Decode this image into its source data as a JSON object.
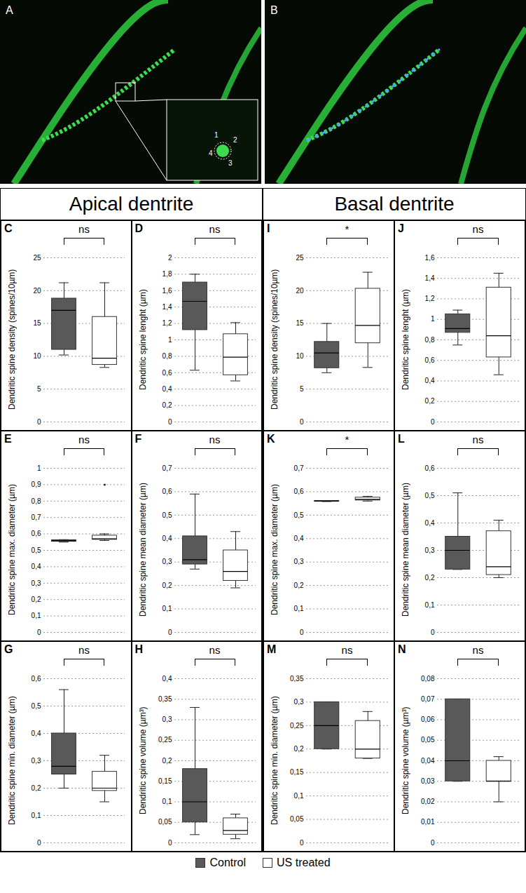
{
  "images": [
    {
      "letter": "A",
      "inset_labels": [
        "1",
        "2",
        "3",
        "4"
      ]
    },
    {
      "letter": "B"
    }
  ],
  "sections": [
    {
      "title": "Apical dentrite",
      "panels": [
        "C",
        "D",
        "E",
        "F",
        "G",
        "H"
      ]
    },
    {
      "title": "Basal dentrite",
      "panels": [
        "I",
        "J",
        "K",
        "L",
        "M",
        "N"
      ]
    }
  ],
  "chart_data": [
    {
      "type": "box",
      "letter": "C",
      "ylabel": "Dendritic spine density (spines/10µm)",
      "significance": "ns",
      "grid": true,
      "legend": "bottom",
      "ylim": [
        0,
        25
      ],
      "yticks": [
        0,
        5,
        10,
        15,
        20,
        25
      ],
      "series": [
        {
          "name": "Control",
          "color": "#595959",
          "min": 10.2,
          "q1": 11,
          "median": 17,
          "q3": 18.8,
          "max": 21.2,
          "outliers": []
        },
        {
          "name": "US treated",
          "color": "#ffffff",
          "min": 8.3,
          "q1": 8.7,
          "median": 9.7,
          "q3": 16,
          "max": 21.2,
          "outliers": []
        }
      ]
    },
    {
      "type": "box",
      "letter": "D",
      "ylabel": "Dendritic spine lenght (µm)",
      "significance": "ns",
      "grid": true,
      "legend": "bottom",
      "ylim": [
        0,
        2
      ],
      "yticks": [
        0,
        {
          "value": 0.2,
          "label": "0,2"
        },
        {
          "value": 0.4,
          "label": "0,4"
        },
        {
          "value": 0.6,
          "label": "0,6"
        },
        {
          "value": 0.8,
          "label": "0,8"
        },
        1,
        {
          "value": 1.2,
          "label": "1,2"
        },
        {
          "value": 1.4,
          "label": "1,4"
        },
        {
          "value": 1.6,
          "label": "1,6"
        },
        {
          "value": 1.8,
          "label": "1,8"
        },
        2
      ],
      "series": [
        {
          "name": "Control",
          "color": "#595959",
          "min": 0.63,
          "q1": 1.12,
          "median": 1.47,
          "q3": 1.7,
          "max": 1.8,
          "outliers": []
        },
        {
          "name": "US treated",
          "color": "#ffffff",
          "min": 0.5,
          "q1": 0.57,
          "median": 0.79,
          "q3": 1.07,
          "max": 1.21,
          "outliers": []
        }
      ]
    },
    {
      "type": "box",
      "letter": "E",
      "ylabel": "Dendritic spine max. diameter (µm)",
      "significance": "ns",
      "grid": true,
      "legend": "bottom",
      "ylim": [
        0,
        1
      ],
      "yticks": [
        0,
        {
          "value": 0.1,
          "label": "0,1"
        },
        {
          "value": 0.2,
          "label": "0,2"
        },
        {
          "value": 0.3,
          "label": "0,3"
        },
        {
          "value": 0.4,
          "label": "0,4"
        },
        {
          "value": 0.5,
          "label": "0,5"
        },
        {
          "value": 0.6,
          "label": "0,6"
        },
        {
          "value": 0.7,
          "label": "0,7"
        },
        {
          "value": 0.8,
          "label": "0,8"
        },
        {
          "value": 0.9,
          "label": "0,9"
        },
        1
      ],
      "series": [
        {
          "name": "Control",
          "color": "#595959",
          "min": 0.55,
          "q1": 0.553,
          "median": 0.558,
          "q3": 0.562,
          "max": 0.565,
          "outliers": []
        },
        {
          "name": "US treated",
          "color": "#ffffff",
          "min": 0.56,
          "q1": 0.565,
          "median": 0.57,
          "q3": 0.59,
          "max": 0.6,
          "outliers": [
            0.9
          ]
        }
      ]
    },
    {
      "type": "box",
      "letter": "F",
      "ylabel": "Dendritic spine mean diameter (µm)",
      "significance": "ns",
      "grid": true,
      "legend": "bottom",
      "ylim": [
        0,
        0.7
      ],
      "yticks": [
        0,
        {
          "value": 0.1,
          "label": "0,1"
        },
        {
          "value": 0.2,
          "label": "0,2"
        },
        {
          "value": 0.3,
          "label": "0,3"
        },
        {
          "value": 0.4,
          "label": "0,4"
        },
        {
          "value": 0.5,
          "label": "0,5"
        },
        {
          "value": 0.6,
          "label": "0,6"
        },
        {
          "value": 0.7,
          "label": "0,7"
        }
      ],
      "series": [
        {
          "name": "Control",
          "color": "#595959",
          "min": 0.27,
          "q1": 0.29,
          "median": 0.31,
          "q3": 0.41,
          "max": 0.59,
          "outliers": []
        },
        {
          "name": "US treated",
          "color": "#ffffff",
          "min": 0.19,
          "q1": 0.22,
          "median": 0.26,
          "q3": 0.35,
          "max": 0.43,
          "outliers": []
        }
      ]
    },
    {
      "type": "box",
      "letter": "G",
      "ylabel": "Dendritic spine min. diameter (µm)",
      "significance": "ns",
      "grid": true,
      "legend": "bottom",
      "ylim": [
        0,
        0.6
      ],
      "yticks": [
        0,
        {
          "value": 0.1,
          "label": "0,1"
        },
        {
          "value": 0.2,
          "label": "0,2"
        },
        {
          "value": 0.3,
          "label": "0,3"
        },
        {
          "value": 0.4,
          "label": "0,4"
        },
        {
          "value": 0.5,
          "label": "0,5"
        },
        {
          "value": 0.6,
          "label": "0,6"
        }
      ],
      "series": [
        {
          "name": "Control",
          "color": "#595959",
          "min": 0.2,
          "q1": 0.25,
          "median": 0.28,
          "q3": 0.4,
          "max": 0.56,
          "outliers": []
        },
        {
          "name": "US treated",
          "color": "#ffffff",
          "min": 0.15,
          "q1": 0.19,
          "median": 0.2,
          "q3": 0.26,
          "max": 0.32,
          "outliers": []
        }
      ]
    },
    {
      "type": "box",
      "letter": "H",
      "ylabel": "Dendritic spine volume (µm³)",
      "significance": "ns",
      "grid": true,
      "legend": "bottom",
      "ylim": [
        0,
        0.4
      ],
      "yticks": [
        0,
        {
          "value": 0.05,
          "label": "0,05"
        },
        {
          "value": 0.1,
          "label": "0,1"
        },
        {
          "value": 0.15,
          "label": "0,15"
        },
        {
          "value": 0.2,
          "label": "0,2"
        },
        {
          "value": 0.25,
          "label": "0,25"
        },
        {
          "value": 0.3,
          "label": "0,3"
        },
        {
          "value": 0.35,
          "label": "0,35"
        },
        {
          "value": 0.4,
          "label": "0,4"
        }
      ],
      "series": [
        {
          "name": "Control",
          "color": "#595959",
          "min": 0.02,
          "q1": 0.05,
          "median": 0.1,
          "q3": 0.18,
          "max": 0.33,
          "outliers": []
        },
        {
          "name": "US treated",
          "color": "#ffffff",
          "min": 0.01,
          "q1": 0.02,
          "median": 0.03,
          "q3": 0.06,
          "max": 0.07,
          "outliers": []
        }
      ]
    },
    {
      "type": "box",
      "letter": "I",
      "ylabel": "Dendritic spine density (spines/10µm)",
      "significance": "*",
      "grid": true,
      "legend": "bottom",
      "ylim": [
        0,
        25
      ],
      "yticks": [
        0,
        5,
        10,
        15,
        20,
        25
      ],
      "series": [
        {
          "name": "Control",
          "color": "#595959",
          "min": 7.5,
          "q1": 8.2,
          "median": 10.5,
          "q3": 12.2,
          "max": 15,
          "outliers": []
        },
        {
          "name": "US treated",
          "color": "#ffffff",
          "min": 8.3,
          "q1": 12,
          "median": 14.7,
          "q3": 20.3,
          "max": 22.8,
          "outliers": []
        }
      ]
    },
    {
      "type": "box",
      "letter": "J",
      "ylabel": "Dendritic spine lenght (µm)",
      "significance": "ns",
      "grid": true,
      "legend": "bottom",
      "ylim": [
        0,
        1.6
      ],
      "yticks": [
        0,
        {
          "value": 0.2,
          "label": "0,2"
        },
        {
          "value": 0.4,
          "label": "0,4"
        },
        {
          "value": 0.6,
          "label": "0,6"
        },
        {
          "value": 0.8,
          "label": "0,8"
        },
        1,
        {
          "value": 1.2,
          "label": "1,2"
        },
        {
          "value": 1.4,
          "label": "1,4"
        },
        {
          "value": 1.6,
          "label": "1,6"
        }
      ],
      "series": [
        {
          "name": "Control",
          "color": "#595959",
          "min": 0.75,
          "q1": 0.87,
          "median": 0.91,
          "q3": 1.05,
          "max": 1.09,
          "outliers": []
        },
        {
          "name": "US treated",
          "color": "#ffffff",
          "min": 0.46,
          "q1": 0.63,
          "median": 0.84,
          "q3": 1.31,
          "max": 1.45,
          "outliers": []
        }
      ]
    },
    {
      "type": "box",
      "letter": "K",
      "ylabel": "Dendritic spine max. diameter (µm)",
      "significance": "*",
      "grid": true,
      "legend": "bottom",
      "ylim": [
        0,
        0.7
      ],
      "yticks": [
        0,
        {
          "value": 0.1,
          "label": "0,1"
        },
        {
          "value": 0.2,
          "label": "0,2"
        },
        {
          "value": 0.3,
          "label": "0,3"
        },
        {
          "value": 0.4,
          "label": "0,4"
        },
        {
          "value": 0.5,
          "label": "0,5"
        },
        {
          "value": 0.6,
          "label": "0,6"
        },
        {
          "value": 0.7,
          "label": "0,7"
        }
      ],
      "series": [
        {
          "name": "Control",
          "color": "#595959",
          "min": 0.558,
          "q1": 0.559,
          "median": 0.56,
          "q3": 0.561,
          "max": 0.562,
          "outliers": []
        },
        {
          "name": "US treated",
          "color": "#ffffff",
          "min": 0.56,
          "q1": 0.563,
          "median": 0.567,
          "q3": 0.575,
          "max": 0.58,
          "outliers": []
        }
      ]
    },
    {
      "type": "box",
      "letter": "L",
      "ylabel": "Dendritic spine mean diameter (µm)",
      "significance": "ns",
      "grid": true,
      "legend": "bottom",
      "ylim": [
        0,
        0.6
      ],
      "yticks": [
        0,
        {
          "value": 0.1,
          "label": "0,1"
        },
        {
          "value": 0.2,
          "label": "0,2"
        },
        {
          "value": 0.3,
          "label": "0,3"
        },
        {
          "value": 0.4,
          "label": "0,4"
        },
        {
          "value": 0.5,
          "label": "0,5"
        },
        {
          "value": 0.6,
          "label": "0,6"
        }
      ],
      "series": [
        {
          "name": "Control",
          "color": "#595959",
          "min": 0.23,
          "q1": 0.23,
          "median": 0.3,
          "q3": 0.35,
          "max": 0.51,
          "outliers": []
        },
        {
          "name": "US treated",
          "color": "#ffffff",
          "min": 0.2,
          "q1": 0.21,
          "median": 0.24,
          "q3": 0.37,
          "max": 0.41,
          "outliers": []
        }
      ]
    },
    {
      "type": "box",
      "letter": "M",
      "ylabel": "Dendritic spine min. diameter (µm)",
      "significance": "ns",
      "grid": true,
      "legend": "bottom",
      "ylim": [
        0,
        0.35
      ],
      "yticks": [
        0,
        {
          "value": 0.05,
          "label": "0,05"
        },
        {
          "value": 0.1,
          "label": "0,1"
        },
        {
          "value": 0.15,
          "label": "0,15"
        },
        {
          "value": 0.2,
          "label": "0,2"
        },
        {
          "value": 0.25,
          "label": "0,25"
        },
        {
          "value": 0.3,
          "label": "0,3"
        },
        {
          "value": 0.35,
          "label": "0,35"
        }
      ],
      "series": [
        {
          "name": "Control",
          "color": "#595959",
          "min": 0.2,
          "q1": 0.2,
          "median": 0.25,
          "q3": 0.3,
          "max": 0.3,
          "outliers": []
        },
        {
          "name": "US treated",
          "color": "#ffffff",
          "min": 0.18,
          "q1": 0.18,
          "median": 0.2,
          "q3": 0.26,
          "max": 0.28,
          "outliers": []
        }
      ]
    },
    {
      "type": "box",
      "letter": "N",
      "ylabel": "Dendritic spine volume (µm³)",
      "significance": "ns",
      "grid": true,
      "legend": "bottom",
      "ylim": [
        0,
        0.08
      ],
      "yticks": [
        0,
        {
          "value": 0.01,
          "label": "0,01"
        },
        {
          "value": 0.02,
          "label": "0,02"
        },
        {
          "value": 0.03,
          "label": "0,03"
        },
        {
          "value": 0.04,
          "label": "0,04"
        },
        {
          "value": 0.05,
          "label": "0,05"
        },
        {
          "value": 0.06,
          "label": "0,06"
        },
        {
          "value": 0.07,
          "label": "0,07"
        },
        {
          "value": 0.08,
          "label": "0,08"
        }
      ],
      "series": [
        {
          "name": "Control",
          "color": "#595959",
          "min": 0.03,
          "q1": 0.03,
          "median": 0.04,
          "q3": 0.07,
          "max": 0.07,
          "outliers": []
        },
        {
          "name": "US treated",
          "color": "#ffffff",
          "min": 0.02,
          "q1": 0.03,
          "median": 0.03,
          "q3": 0.04,
          "max": 0.042,
          "outliers": []
        }
      ]
    }
  ]
}
